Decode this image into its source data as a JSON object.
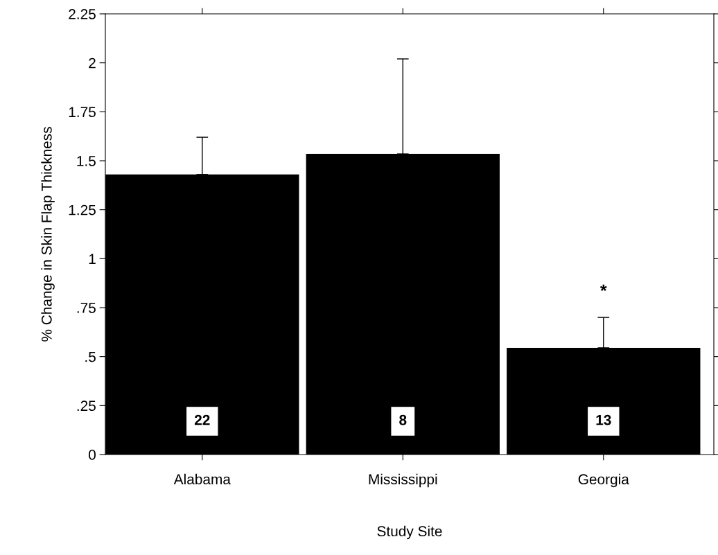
{
  "chart_data": {
    "type": "bar",
    "xlabel": "Study Site",
    "ylabel": "% Change in Skin Flap Thickness",
    "categories": [
      "Alabama",
      "Mississippi",
      "Georgia"
    ],
    "values": [
      1.43,
      1.535,
      0.545
    ],
    "errors": [
      [
        1.43,
        1.62
      ],
      [
        1.535,
        2.02
      ],
      [
        0.545,
        0.7
      ]
    ],
    "color": "#000000",
    "ylim": [
      0,
      2.25
    ],
    "yticks": [
      0,
      {
        "value": 0.25,
        "label": ".25"
      },
      {
        "value": 0.5,
        "label": ".5"
      },
      {
        "value": 0.75,
        "label": ".75"
      },
      1,
      1.25,
      1.5,
      1.75,
      2,
      2.25
    ],
    "grid": false,
    "annotations": [
      "22",
      "8",
      "13",
      "*"
    ]
  }
}
